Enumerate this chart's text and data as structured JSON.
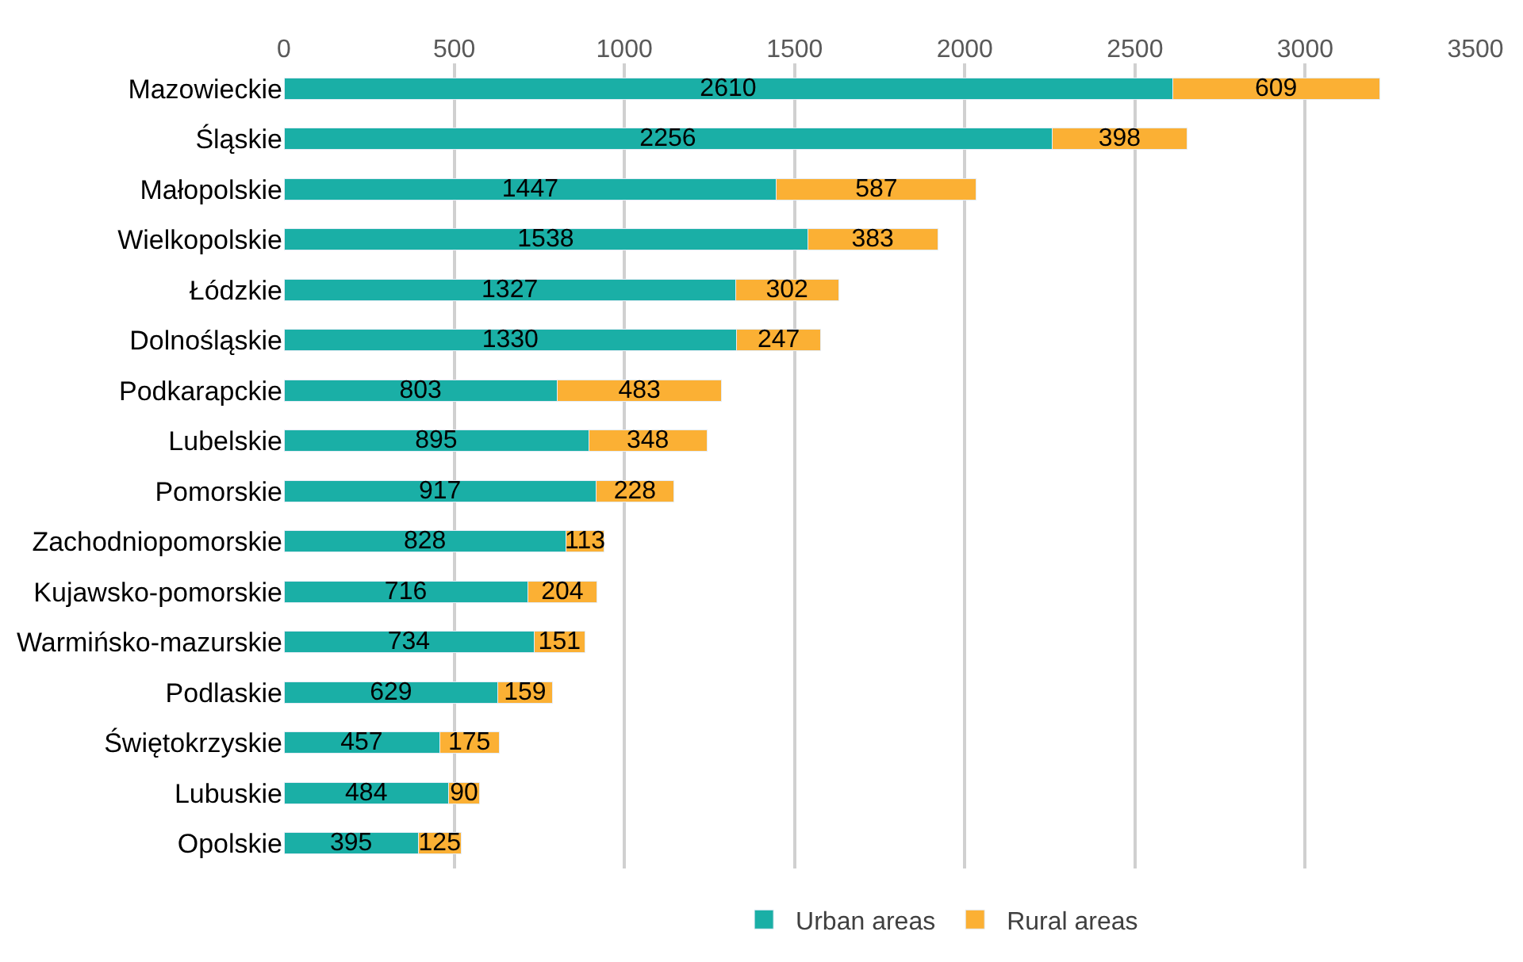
{
  "chart_data": {
    "type": "bar",
    "orientation": "horizontal",
    "stacked": true,
    "categories": [
      "Mazowieckie",
      "Śląskie",
      "Małopolskie",
      "Wielkopolskie",
      "Łódzkie",
      "Dolnośląskie",
      "Podkarapckie",
      "Lubelskie",
      "Pomorskie",
      "Zachodniopomorskie",
      "Kujawsko-pomorskie",
      "Warmińsko-mazurskie",
      "Podlaskie",
      "Świętokrzyskie",
      "Lubuskie",
      "Opolskie"
    ],
    "series": [
      {
        "name": "Urban areas",
        "color": "#1aafa6",
        "values": [
          2610,
          2256,
          1447,
          1538,
          1327,
          1330,
          803,
          895,
          917,
          828,
          716,
          734,
          629,
          457,
          484,
          395
        ]
      },
      {
        "name": "Rural areas",
        "color": "#fbb034",
        "values": [
          609,
          398,
          587,
          383,
          302,
          247,
          483,
          348,
          228,
          113,
          204,
          151,
          159,
          175,
          90,
          125
        ]
      }
    ],
    "xlim": [
      0,
      3500
    ],
    "xticks": [
      0,
      500,
      1000,
      1500,
      2000,
      2500,
      3000,
      3500
    ],
    "grid": "x",
    "legend": "bottom",
    "data_labels": true
  }
}
